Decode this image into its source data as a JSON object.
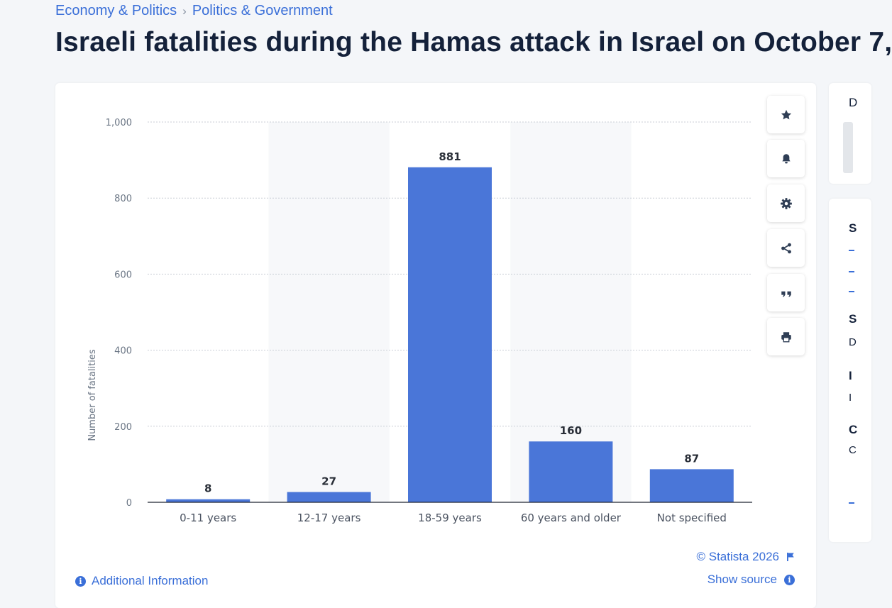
{
  "breadcrumb": {
    "item1": "Economy & Politics",
    "separator": "›",
    "item2": "Politics & Government"
  },
  "title": "Israeli fatalities during the Hamas attack in Israel on October 7,",
  "chart_data": {
    "type": "bar",
    "categories": [
      "0-11 years",
      "12-17 years",
      "18-59 years",
      "60 years and older",
      "Not specified"
    ],
    "values": [
      8,
      27,
      881,
      160,
      87
    ],
    "data_labels": [
      "8",
      "27",
      "881",
      "160",
      "87"
    ],
    "ylabel": "Number of fatalities",
    "xlabel": "",
    "ylim": [
      0,
      1000
    ],
    "yticks": [
      0,
      200,
      400,
      600,
      800,
      1000
    ],
    "ytick_labels": [
      "0",
      "200",
      "400",
      "600",
      "800",
      "1,000"
    ],
    "bar_color": "#4a76d8",
    "grid": true
  },
  "actions": [
    {
      "name": "favorite",
      "icon": "star-icon"
    },
    {
      "name": "notification",
      "icon": "bell-icon"
    },
    {
      "name": "settings",
      "icon": "gear-icon"
    },
    {
      "name": "share",
      "icon": "share-icon"
    },
    {
      "name": "cite",
      "icon": "quote-icon"
    },
    {
      "name": "print",
      "icon": "print-icon"
    }
  ],
  "footer": {
    "credit": "© Statista 2026",
    "show_source": "Show source",
    "additional_info": "Additional Information",
    "info_glyph": "i"
  },
  "side_fragments": [
    "S",
    "D",
    "I",
    "S",
    "C",
    "I",
    "D",
    "C"
  ],
  "colors": {
    "accent": "#3a6fd8",
    "bar": "#4a76d8",
    "title": "#14213a",
    "background": "#f4f6f9"
  }
}
